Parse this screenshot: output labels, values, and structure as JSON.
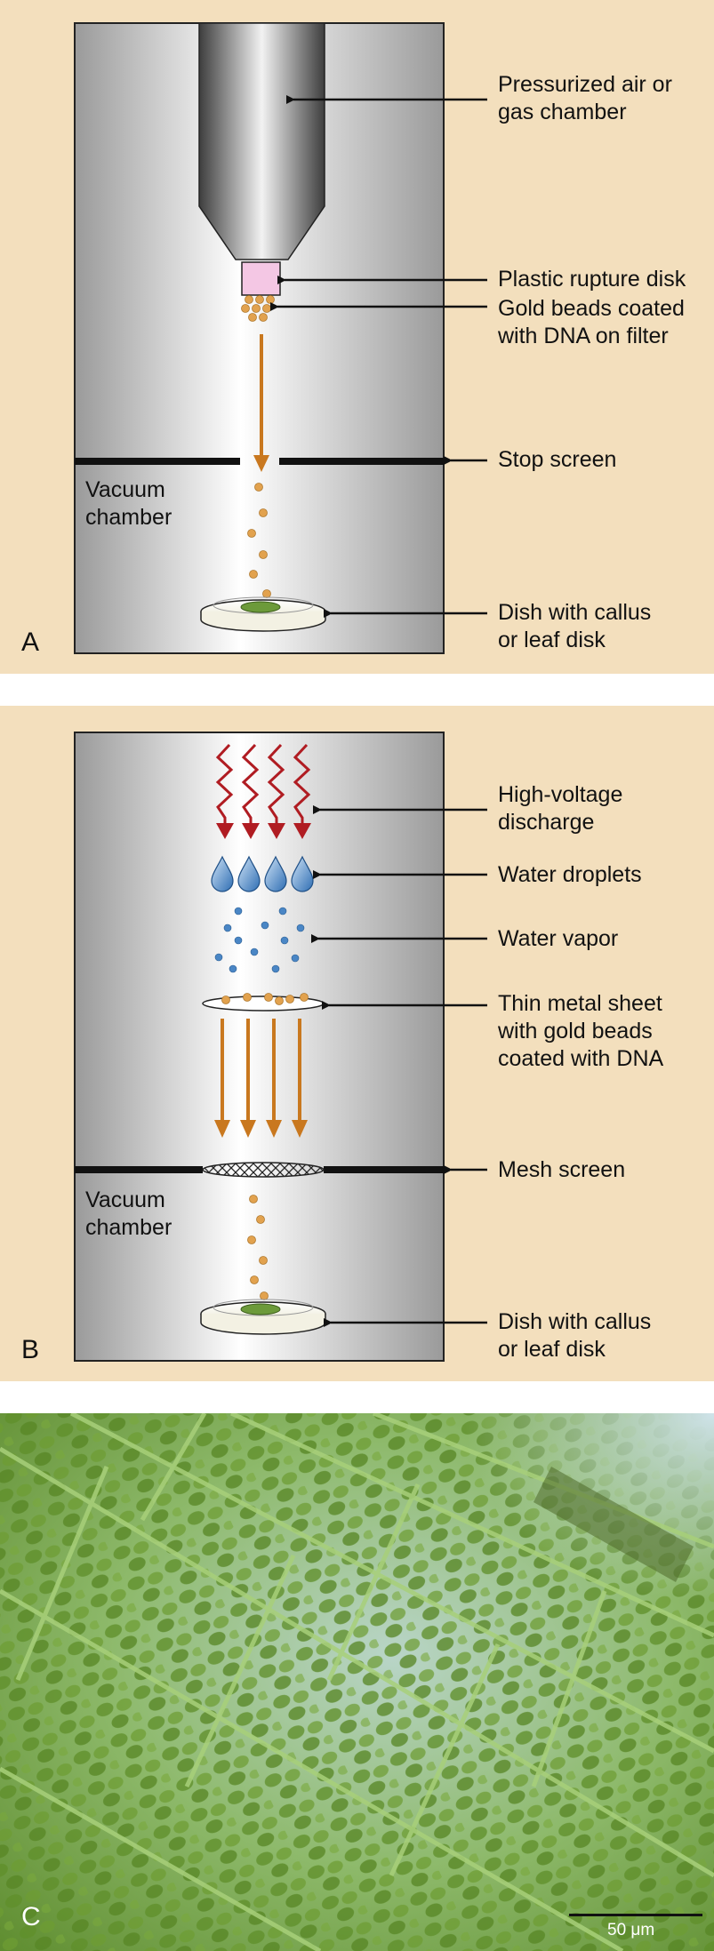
{
  "panels": {
    "a": {
      "letter": "A",
      "vacuum": "Vacuum\nchamber",
      "labels": {
        "chamber": "Pressurized air  or\ngas chamber",
        "rupture": "Plastic rupture disk",
        "beads": "Gold beads coated\nwith DNA on filter",
        "stop": "Stop screen",
        "dish": "Dish with callus\nor leaf disk"
      }
    },
    "b": {
      "letter": "B",
      "vacuum": "Vacuum\nchamber",
      "labels": {
        "discharge": "High-voltage\ndischarge",
        "droplets": "Water droplets",
        "vapor": "Water vapor",
        "sheet": "Thin metal sheet\nwith gold beads\ncoated with DNA",
        "mesh": "Mesh screen",
        "dish": "Dish with callus\nor leaf disk"
      }
    },
    "c": {
      "letter": "C",
      "scale": "50 μm"
    }
  },
  "colors": {
    "panel_bg": "#f3dfbd",
    "gold": "#e2a24e",
    "arrow_orange": "#c9781f",
    "discharge_red": "#b01c22",
    "droplet_blue": "#4a86c5",
    "leaf_green": "#6c9a3a"
  }
}
